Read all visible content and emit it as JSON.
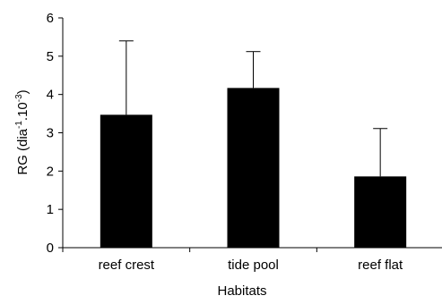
{
  "chart_data": {
    "type": "bar",
    "title": "",
    "xlabel": "Habitats",
    "ylabel": "RG (dia",
    "ylabel_sup1": "-1",
    "ylabel_mid": ".10",
    "ylabel_sup2": "-3",
    "ylabel_end": ")",
    "categories": [
      "reef crest",
      "tide pool",
      "reef flat"
    ],
    "values": [
      3.47,
      4.17,
      1.86
    ],
    "error_upper": [
      5.4,
      5.12,
      3.11
    ],
    "ylim": [
      0,
      6
    ],
    "yticks": [
      "0",
      "1",
      "2",
      "3",
      "4",
      "5",
      "6"
    ],
    "grid": false,
    "legend": "none",
    "bar_color": "#000000"
  }
}
